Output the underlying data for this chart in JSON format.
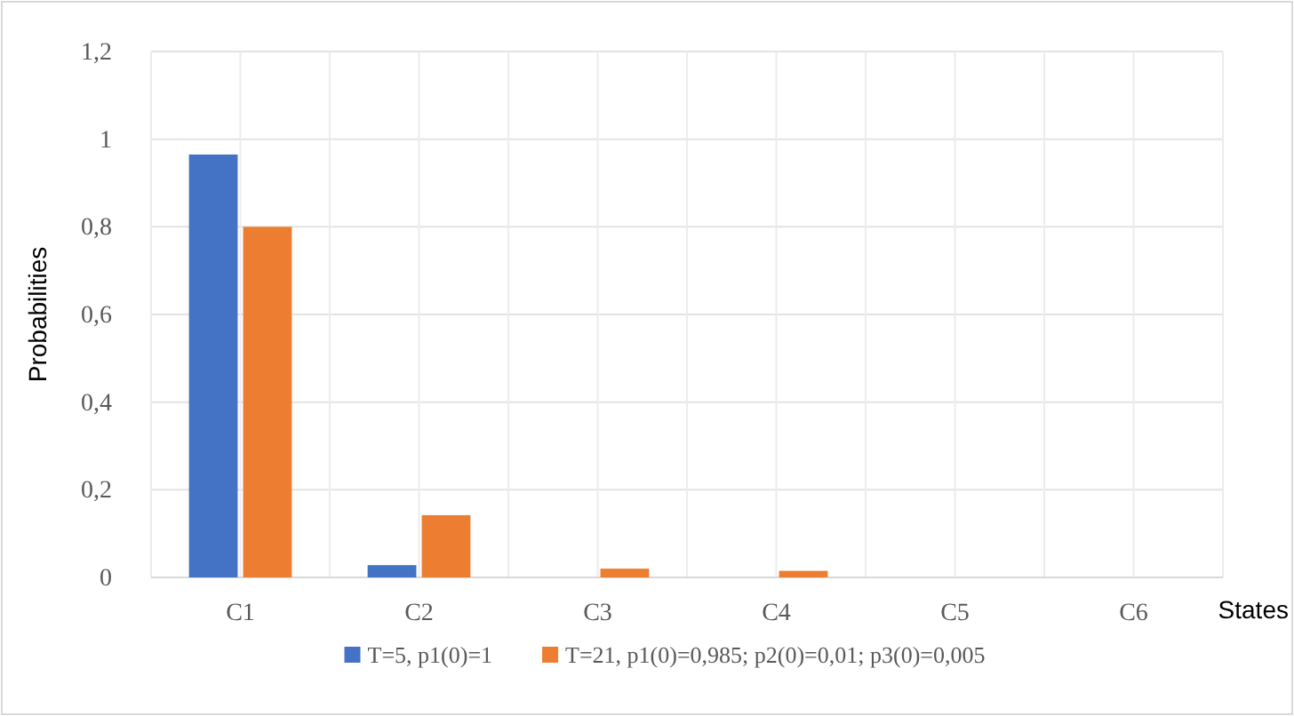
{
  "chart_data": {
    "type": "bar",
    "ylabel": "Probabilities",
    "xlabel": "States",
    "categories": [
      "C1",
      "C2",
      "C3",
      "C4",
      "C5",
      "C6"
    ],
    "series": [
      {
        "name": "T=5, p1(0)=1",
        "color": "#4472c4",
        "values": [
          0.965,
          0.028,
          0,
          0,
          0,
          0
        ]
      },
      {
        "name": "T=21, p1(0)=0,985; p2(0)=0,01; p3(0)=0,005",
        "color": "#ed7d31",
        "values": [
          0.8,
          0.142,
          0.02,
          0.015,
          0,
          0
        ]
      }
    ],
    "ylim": [
      0,
      1.2
    ],
    "yticks": [
      0,
      {
        "value": 0.2,
        "label": "0,2"
      },
      {
        "value": 0.4,
        "label": "0,4"
      },
      {
        "value": 0.6,
        "label": "0,6"
      },
      {
        "value": 0.8,
        "label": "0,8"
      },
      1,
      {
        "value": 1.2,
        "label": "1,2"
      }
    ],
    "grid": true,
    "legend": "bottom"
  }
}
